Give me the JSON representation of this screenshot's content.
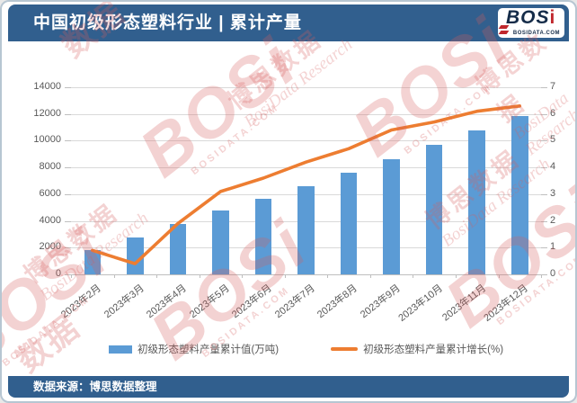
{
  "header": {
    "title": "中国初级形态塑料行业 | 累计产量",
    "logo": {
      "text": "BOS",
      "text_accent": "i",
      "subtext": "BOSIDATA.COM"
    }
  },
  "footer": {
    "source_text": "数据来源：博思数据整理"
  },
  "colors": {
    "header_bg": "#315F8E",
    "bar": "#5B9BD5",
    "line": "#ED7D31",
    "grid": "#D9D9D9",
    "axis_text": "#595959",
    "watermark": "#D65E5E"
  },
  "watermarks": {
    "bosi": "BOSi",
    "bosi_sub": "BOSIDATA.COM",
    "cn": "博思数据",
    "en": "BosiData Research",
    "shu": "数据"
  },
  "chart_data": {
    "type": "bar",
    "subtype": "bar+line combo",
    "categories": [
      "2023年2月",
      "2023年3月",
      "2023年4月",
      "2023年5月",
      "2023年6月",
      "2023年7月",
      "2023年8月",
      "2023年9月",
      "2023年10月",
      "2023年11月",
      "2023年12月"
    ],
    "series": [
      {
        "name": "初级形态塑料产量累计值(万吨)",
        "type": "bar",
        "axis": "left",
        "color": "#5B9BD5",
        "values": [
          1830,
          2740,
          3770,
          4760,
          5660,
          6600,
          7630,
          8650,
          9720,
          10780,
          11850
        ]
      },
      {
        "name": "初级形态塑料产量累计增长(%)",
        "type": "line",
        "axis": "right",
        "color": "#ED7D31",
        "values": [
          0.9,
          0.4,
          1.9,
          3.1,
          3.6,
          4.2,
          4.7,
          5.4,
          5.7,
          6.1,
          6.3
        ]
      }
    ],
    "left_axis": {
      "min": 0,
      "max": 14000,
      "step": 2000
    },
    "right_axis": {
      "min": 0,
      "max": 7,
      "step": 1
    },
    "grid": true,
    "legend_position": "bottom"
  }
}
